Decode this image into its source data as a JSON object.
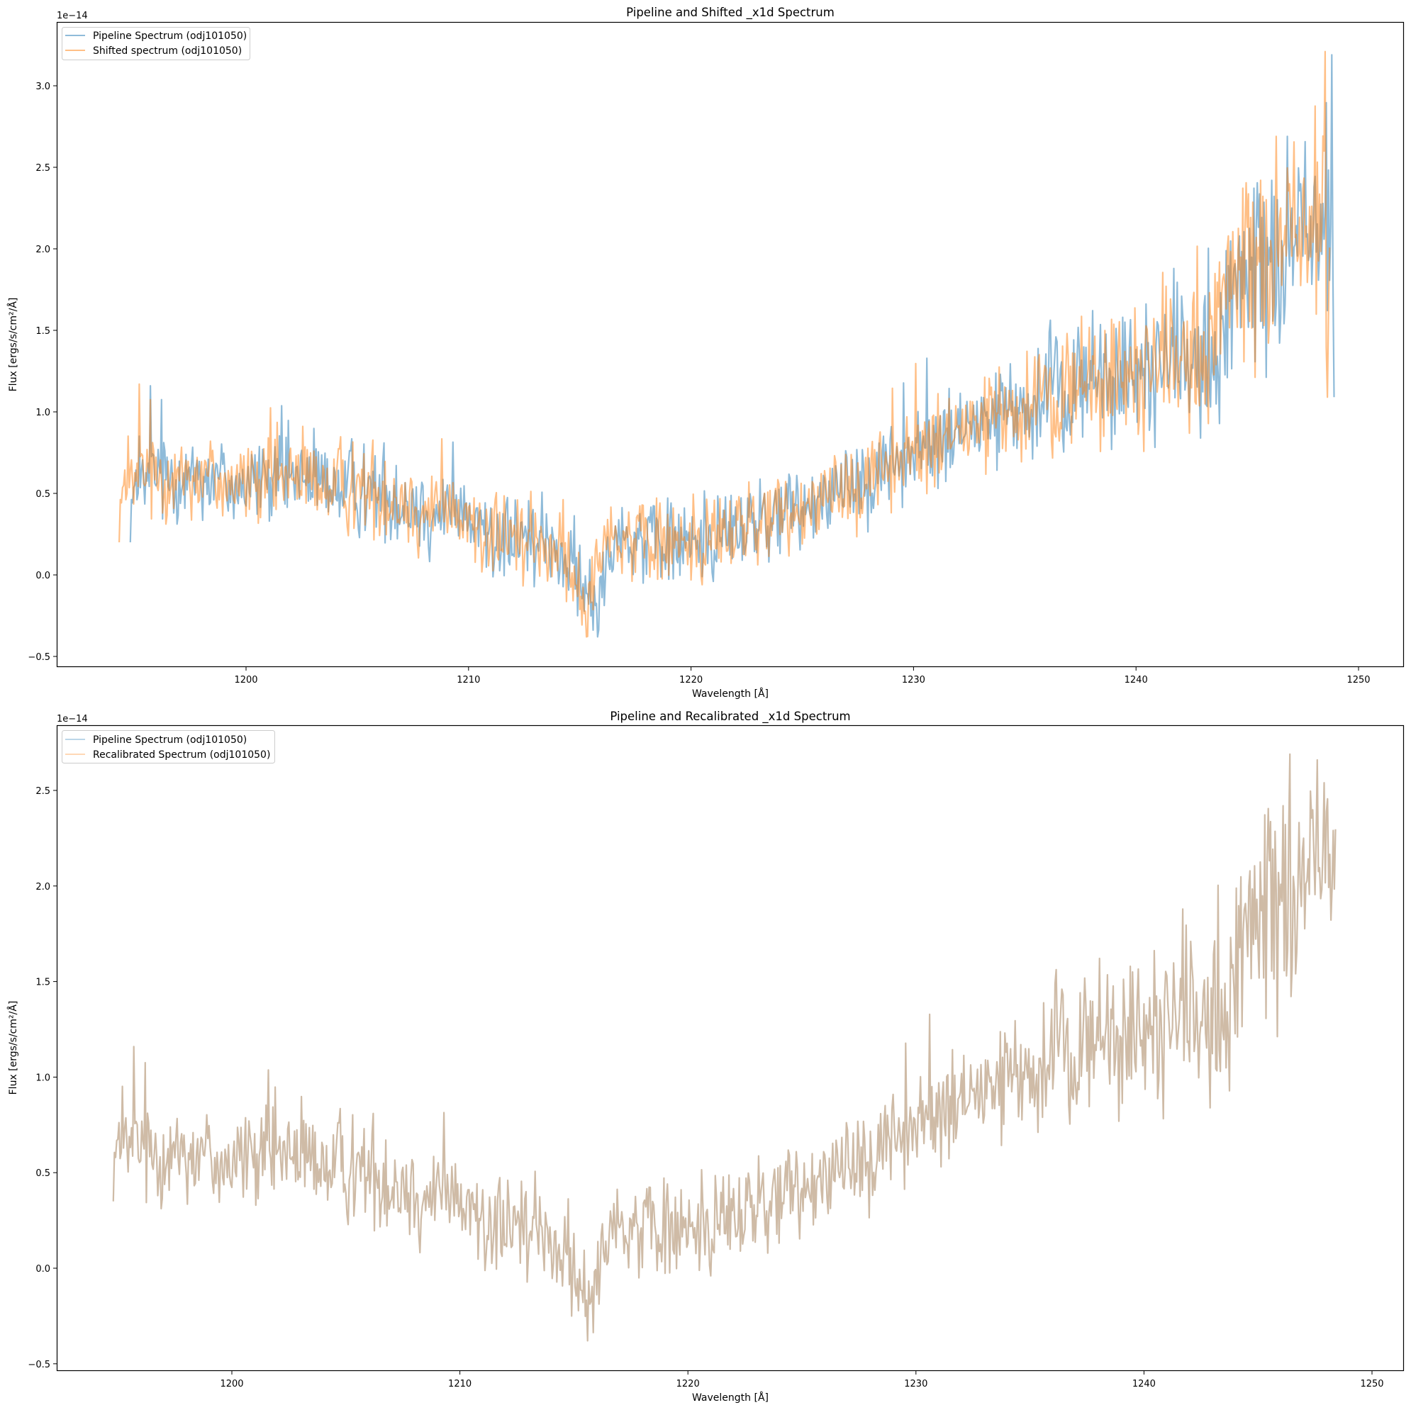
{
  "chart_data": [
    {
      "type": "line",
      "title": "Pipeline and Shifted _x1d Spectrum",
      "xlabel": "Wavelength [Å]",
      "ylabel": "Flux [ergs/s/cm²/Å]",
      "y_offset_label": "1e−14",
      "xlim": [
        1191.5,
        1252
      ],
      "ylim": [
        -0.56,
        3.35
      ],
      "x_ticks": [
        1200,
        1210,
        1220,
        1230,
        1240,
        1250
      ],
      "y_ticks": [
        -0.5,
        0.0,
        0.5,
        1.0,
        1.5,
        2.0,
        2.5,
        3.0
      ],
      "y_tick_labels": [
        "−0.5",
        "0.0",
        "0.5",
        "1.0",
        "1.5",
        "2.0",
        "2.5",
        "3.0"
      ],
      "grid": false,
      "legend_position": "upper left",
      "series": [
        {
          "name": "Pipeline Spectrum (odj101050)",
          "color": "#1f77b4",
          "alpha": 0.5,
          "x_range": [
            1194.8,
            1248.9
          ],
          "trend": [
            [
              1194.8,
              0.45
            ],
            [
              1196,
              0.62
            ],
            [
              1198,
              0.62
            ],
            [
              1200,
              0.55
            ],
            [
              1202,
              0.6
            ],
            [
              1204,
              0.55
            ],
            [
              1206,
              0.5
            ],
            [
              1208,
              0.4
            ],
            [
              1210,
              0.32
            ],
            [
              1212,
              0.2
            ],
            [
              1214,
              0.18
            ],
            [
              1215.6,
              -0.2
            ],
            [
              1216.5,
              0.25
            ],
            [
              1218,
              0.2
            ],
            [
              1220,
              0.2
            ],
            [
              1222,
              0.28
            ],
            [
              1224,
              0.35
            ],
            [
              1226,
              0.5
            ],
            [
              1228,
              0.62
            ],
            [
              1230,
              0.75
            ],
            [
              1232,
              0.88
            ],
            [
              1234,
              0.98
            ],
            [
              1236,
              1.05
            ],
            [
              1238,
              1.2
            ],
            [
              1240,
              1.25
            ],
            [
              1242,
              1.35
            ],
            [
              1243.5,
              1.2
            ],
            [
              1244.5,
              1.7
            ],
            [
              1246,
              1.95
            ],
            [
              1247.5,
              2.1
            ],
            [
              1248.6,
              2.2
            ],
            [
              1248.9,
              1.8
            ]
          ],
          "noise_amplitude": 0.17,
          "notable_points": [
            [
              1195.7,
              1.16
            ],
            [
              1215.8,
              -0.38
            ],
            [
              1246.8,
              2.69
            ],
            [
              1248.8,
              3.19
            ],
            [
              1248.9,
              1.09
            ]
          ]
        },
        {
          "name": "Shifted spectrum (odj101050)",
          "color": "#ff7f0e",
          "alpha": 0.5,
          "x_range": [
            1194.3,
            1248.7
          ],
          "trend": [
            [
              1194.3,
              0.45
            ],
            [
              1195.5,
              0.62
            ],
            [
              1198,
              0.62
            ],
            [
              1200,
              0.55
            ],
            [
              1202,
              0.6
            ],
            [
              1204,
              0.55
            ],
            [
              1206,
              0.5
            ],
            [
              1208,
              0.4
            ],
            [
              1210,
              0.32
            ],
            [
              1212,
              0.2
            ],
            [
              1214,
              0.18
            ],
            [
              1215.2,
              -0.2
            ],
            [
              1216,
              0.25
            ],
            [
              1218,
              0.2
            ],
            [
              1220,
              0.2
            ],
            [
              1222,
              0.28
            ],
            [
              1224,
              0.35
            ],
            [
              1226,
              0.5
            ],
            [
              1228,
              0.62
            ],
            [
              1230,
              0.75
            ],
            [
              1232,
              0.88
            ],
            [
              1234,
              0.98
            ],
            [
              1236,
              1.05
            ],
            [
              1238,
              1.2
            ],
            [
              1240,
              1.25
            ],
            [
              1242,
              1.35
            ],
            [
              1243,
              1.2
            ],
            [
              1244,
              1.7
            ],
            [
              1245.5,
              1.95
            ],
            [
              1247,
              2.1
            ],
            [
              1248.4,
              2.2
            ],
            [
              1248.7,
              1.5
            ]
          ],
          "noise_amplitude": 0.17,
          "notable_points": [
            [
              1195.2,
              1.17
            ],
            [
              1215.3,
              -0.38
            ],
            [
              1246.3,
              2.69
            ],
            [
              1248.5,
              3.21
            ],
            [
              1248.6,
              1.09
            ]
          ]
        }
      ]
    },
    {
      "type": "line",
      "title": "Pipeline and Recalibrated _x1d Spectrum",
      "xlabel": "Wavelength [Å]",
      "ylabel": "Flux [ergs/s/cm²/Å]",
      "y_offset_label": "1e−14",
      "xlim": [
        1192.2,
        1252
      ],
      "ylim": [
        -0.55,
        2.84
      ],
      "x_ticks": [
        1200,
        1210,
        1220,
        1230,
        1240,
        1250
      ],
      "y_ticks": [
        -0.5,
        0.0,
        0.5,
        1.0,
        1.5,
        2.0,
        2.5
      ],
      "y_tick_labels": [
        "−0.5",
        "0.0",
        "0.5",
        "1.0",
        "1.5",
        "2.0",
        "2.5"
      ],
      "grid": false,
      "legend_position": "upper left",
      "series": [
        {
          "name": "Pipeline Spectrum (odj101050)",
          "color": "#1f77b4",
          "alpha": 0.3,
          "x_range": [
            1194.8,
            1248.4
          ],
          "trend": [
            [
              1194.8,
              0.6
            ],
            [
              1196,
              0.62
            ],
            [
              1198,
              0.62
            ],
            [
              1200,
              0.55
            ],
            [
              1202,
              0.6
            ],
            [
              1204,
              0.55
            ],
            [
              1206,
              0.5
            ],
            [
              1208,
              0.4
            ],
            [
              1210,
              0.32
            ],
            [
              1212,
              0.2
            ],
            [
              1214,
              0.18
            ],
            [
              1215.6,
              -0.2
            ],
            [
              1216.5,
              0.25
            ],
            [
              1218,
              0.2
            ],
            [
              1220,
              0.2
            ],
            [
              1222,
              0.28
            ],
            [
              1224,
              0.35
            ],
            [
              1226,
              0.5
            ],
            [
              1228,
              0.62
            ],
            [
              1230,
              0.75
            ],
            [
              1232,
              0.88
            ],
            [
              1234,
              0.98
            ],
            [
              1236,
              1.05
            ],
            [
              1238,
              1.2
            ],
            [
              1240,
              1.25
            ],
            [
              1242,
              1.35
            ],
            [
              1243.5,
              1.2
            ],
            [
              1244.5,
              1.7
            ],
            [
              1246,
              1.95
            ],
            [
              1247.5,
              2.1
            ],
            [
              1248.4,
              2.2
            ]
          ],
          "noise_amplitude": 0.17,
          "notable_points": [
            [
              1195.7,
              1.16
            ],
            [
              1215.6,
              -0.38
            ],
            [
              1246.4,
              2.69
            ],
            [
              1247.9,
              2.54
            ]
          ]
        },
        {
          "name": "Recalibrated Spectrum (odj101050)",
          "color": "#ff7f0e",
          "alpha": 0.3,
          "x_range": [
            1194.8,
            1248.4
          ],
          "trend": "identical to Pipeline Spectrum (curves overlap)",
          "notable_points": [
            [
              1195.7,
              1.16
            ],
            [
              1215.6,
              -0.38
            ],
            [
              1246.4,
              2.69
            ],
            [
              1247.9,
              2.54
            ]
          ]
        }
      ]
    }
  ],
  "plots": {
    "top": {
      "title": "Pipeline and Shifted _x1d Spectrum",
      "offset": "1e−14",
      "xlabel": "Wavelength [Å]",
      "ylabel": "Flux [ergs/s/cm²/Å]",
      "legend": [
        "Pipeline Spectrum (odj101050)",
        "Shifted spectrum (odj101050)"
      ]
    },
    "bottom": {
      "title": "Pipeline and Recalibrated _x1d Spectrum",
      "offset": "1e−14",
      "xlabel": "Wavelength [Å]",
      "ylabel": "Flux [ergs/s/cm²/Å]",
      "legend": [
        "Pipeline Spectrum (odj101050)",
        "Recalibrated Spectrum (odj101050)"
      ]
    }
  },
  "colors": {
    "blue": "#1f77b4",
    "orange": "#ff7f0e",
    "overlap": "#d2b8a0"
  }
}
